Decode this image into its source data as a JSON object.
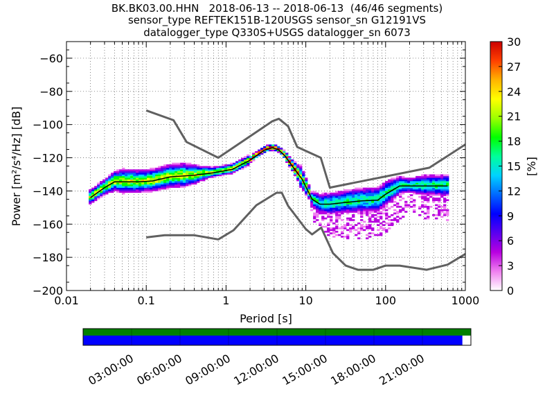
{
  "title_lines": [
    "BK.BK03.00.HHN   2018-06-13 -- 2018-06-13  (46/46 segments)",
    "sensor_type REFTEK151B-120USGS sensor_sn G12191VS",
    "datalogger_type Q330S+USGS datalogger_sn 6073"
  ],
  "chart_data": {
    "type": "heatmap",
    "xlabel": "Period [s]",
    "ylabel": "Power [m²/s⁴/Hz] [dB]",
    "x_scale": "log",
    "xlim": [
      0.01,
      1000
    ],
    "ylim": [
      -200,
      -50
    ],
    "x_ticks": [
      0.01,
      0.1,
      1,
      10,
      100,
      1000
    ],
    "x_tick_labels": [
      "0.01",
      "0.1",
      "1",
      "10",
      "100",
      "1000"
    ],
    "y_ticks": [
      -200,
      -180,
      -160,
      -140,
      -120,
      -100,
      -80,
      -60
    ],
    "y_tick_labels": [
      "−200",
      "−180",
      "−160",
      "−140",
      "−120",
      "−100",
      "−80",
      "−60"
    ],
    "grid": "dotted",
    "colorbar": {
      "label": "[%]",
      "min": 0,
      "max": 30,
      "ticks": [
        0,
        3,
        6,
        9,
        12,
        15,
        18,
        21,
        24,
        27,
        30
      ],
      "colors": [
        "#ffffff",
        "#f07ff0",
        "#b800e0",
        "#5a00f0",
        "#0000ff",
        "#0068ff",
        "#00d2ff",
        "#00ff9c",
        "#00ff00",
        "#9cff00",
        "#ffff00",
        "#ffb400",
        "#ff4000",
        "#cc0000"
      ]
    },
    "noise_model_high": [
      [
        0.1,
        -91.5
      ],
      [
        0.22,
        -97.4
      ],
      [
        0.32,
        -110.5
      ],
      [
        0.8,
        -120
      ],
      [
        3.8,
        -98
      ],
      [
        4.6,
        -96.5
      ],
      [
        6,
        -101
      ],
      [
        7.8,
        -113.5
      ],
      [
        15.4,
        -120
      ],
      [
        20,
        -138
      ],
      [
        354,
        -126
      ],
      [
        1000,
        -112
      ]
    ],
    "noise_model_low": [
      [
        0.1,
        -168
      ],
      [
        0.17,
        -166.7
      ],
      [
        0.4,
        -166.7
      ],
      [
        0.8,
        -169.2
      ],
      [
        1.24,
        -163.7
      ],
      [
        2.4,
        -148.6
      ],
      [
        4.3,
        -141.1
      ],
      [
        5,
        -141.1
      ],
      [
        6,
        -149
      ],
      [
        10,
        -163
      ],
      [
        12,
        -166.2
      ],
      [
        15.6,
        -162.1
      ],
      [
        21.9,
        -177.5
      ],
      [
        31.6,
        -185
      ],
      [
        45,
        -187.5
      ],
      [
        70,
        -187.5
      ],
      [
        100,
        -185
      ],
      [
        150,
        -185
      ],
      [
        328,
        -187.5
      ],
      [
        600,
        -184.4
      ],
      [
        1000,
        -178
      ]
    ],
    "mode_curve": [
      [
        0.02,
        -144
      ],
      [
        0.03,
        -138
      ],
      [
        0.04,
        -134.5
      ],
      [
        0.08,
        -134.5
      ],
      [
        0.12,
        -134
      ],
      [
        0.2,
        -131.5
      ],
      [
        0.4,
        -130.5
      ],
      [
        0.7,
        -129
      ],
      [
        1.2,
        -127
      ],
      [
        2,
        -121.5
      ],
      [
        3,
        -115.5
      ],
      [
        3.8,
        -114
      ],
      [
        4.5,
        -115
      ],
      [
        5.5,
        -119
      ],
      [
        7,
        -126
      ],
      [
        9,
        -133
      ],
      [
        12,
        -145
      ],
      [
        15,
        -148
      ],
      [
        20,
        -148
      ],
      [
        30,
        -147
      ],
      [
        50,
        -146
      ],
      [
        80,
        -145.5
      ],
      [
        100,
        -142
      ],
      [
        150,
        -137
      ],
      [
        300,
        -137
      ],
      [
        600,
        -137
      ]
    ],
    "percentile_curve_low": [
      [
        0.02,
        -146
      ],
      [
        0.03,
        -140
      ],
      [
        0.05,
        -138.5
      ],
      [
        0.1,
        -138.5
      ],
      [
        0.3,
        -134.5
      ],
      [
        0.8,
        -129.5
      ],
      [
        2,
        -122.5
      ],
      [
        3.5,
        -115.5
      ],
      [
        5,
        -117
      ],
      [
        8,
        -130
      ],
      [
        13,
        -146
      ],
      [
        20,
        -150
      ],
      [
        50,
        -149.5
      ],
      [
        100,
        -146
      ],
      [
        200,
        -140
      ],
      [
        600,
        -140.5
      ]
    ],
    "percentile_curve_high": [
      [
        0.02,
        -142
      ],
      [
        0.03,
        -135.5
      ],
      [
        0.05,
        -131.5
      ],
      [
        0.1,
        -132
      ],
      [
        0.3,
        -127.5
      ],
      [
        0.8,
        -127.5
      ],
      [
        2,
        -120
      ],
      [
        3.5,
        -113
      ],
      [
        5,
        -114
      ],
      [
        8,
        -123
      ],
      [
        12,
        -140
      ],
      [
        20,
        -143.5
      ],
      [
        50,
        -142
      ],
      [
        100,
        -138.5
      ],
      [
        300,
        -134
      ],
      [
        600,
        -134
      ]
    ],
    "timeline": {
      "tick_labels": [
        "03:00:00",
        "06:00:00",
        "09:00:00",
        "12:00:00",
        "15:00:00",
        "18:00:00",
        "21:00:00"
      ],
      "coverage_color_top": "#008000",
      "coverage_color_bottom": "#0000ff",
      "coverage_fraction": 0.978
    }
  }
}
